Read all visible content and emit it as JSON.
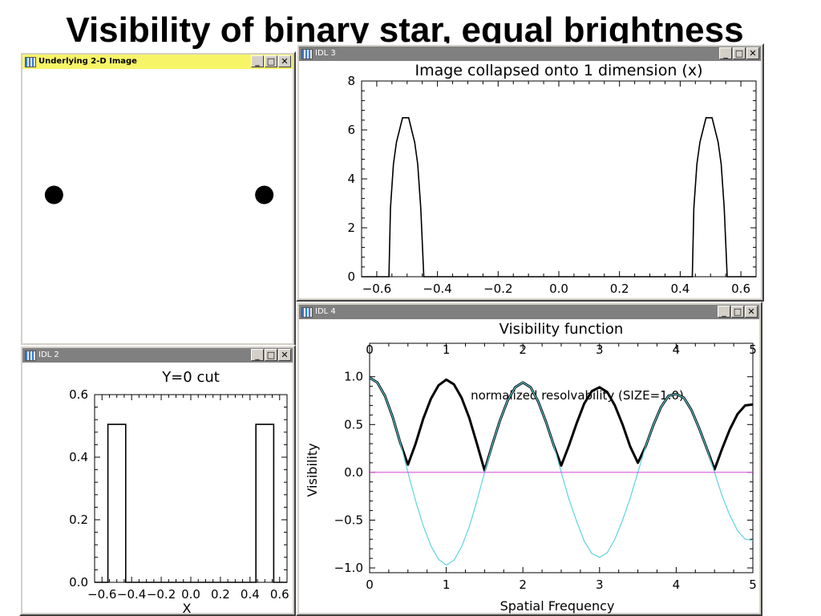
{
  "slide_title": "Visibility of binary star, equal brightness",
  "windows": {
    "image": {
      "title": "Underlying 2-D Image"
    },
    "collapsed": {
      "title": "IDL 3"
    },
    "cut": {
      "title": "IDL 2"
    },
    "visibility": {
      "title": "IDL 4"
    }
  },
  "window_buttons": {
    "minimize": "_",
    "maximize": "□",
    "close": "✕"
  },
  "colors": {
    "data": "#000000",
    "model_curve": "#5fd3de",
    "zero_line": "#d040d0",
    "selected_titlebar": "#f7f468",
    "window_frame": "#d4d0c8"
  },
  "chart_data": [
    {
      "id": "image",
      "type": "scatter",
      "title": "",
      "points": [
        {
          "x": -0.5,
          "y": 0.0
        },
        {
          "x": 0.5,
          "y": 0.0
        }
      ],
      "xlim": [
        -0.65,
        0.65
      ],
      "ylim": [
        -0.65,
        0.65
      ]
    },
    {
      "id": "collapsed",
      "type": "line",
      "title": "Image collapsed onto 1 dimension (x)",
      "xlabel": "",
      "ylabel": "",
      "xlim": [
        -0.65,
        0.65
      ],
      "ylim": [
        0,
        8
      ],
      "xticks": [
        -0.6,
        -0.4,
        -0.2,
        0.0,
        0.2,
        0.4,
        0.6
      ],
      "xtick_labels": [
        "−0.6",
        "−0.4",
        "−0.2",
        "0.0",
        "0.2",
        "0.4",
        "0.6"
      ],
      "yticks": [
        0,
        2,
        4,
        6,
        8
      ],
      "ytick_labels": [
        "0",
        "2",
        "4",
        "6",
        "8"
      ],
      "series": [
        {
          "x": [
            -0.65,
            -0.56,
            -0.555,
            -0.545,
            -0.535,
            -0.525,
            -0.515,
            -0.505,
            -0.495,
            -0.485,
            -0.475,
            -0.465,
            -0.455,
            -0.445,
            -0.44,
            0.44,
            0.445,
            0.455,
            0.465,
            0.475,
            0.485,
            0.495,
            0.505,
            0.515,
            0.525,
            0.535,
            0.545,
            0.555,
            0.56,
            0.65
          ],
          "y": [
            0,
            0,
            2.8,
            4.6,
            5.5,
            6.0,
            6.5,
            6.5,
            6.5,
            6.0,
            5.5,
            4.6,
            2.8,
            0,
            0,
            0,
            2.8,
            4.6,
            5.5,
            6.0,
            6.5,
            6.5,
            6.5,
            6.0,
            5.5,
            4.6,
            2.8,
            0,
            0,
            0
          ]
        }
      ]
    },
    {
      "id": "cut",
      "type": "line",
      "title": "Y=0 cut",
      "xlabel": "X",
      "ylabel": "",
      "xlim": [
        -0.65,
        0.65
      ],
      "ylim": [
        0,
        0.6
      ],
      "xticks": [
        -0.6,
        -0.4,
        -0.2,
        0.0,
        0.2,
        0.4,
        0.6
      ],
      "xtick_labels": [
        "−0.6",
        "−0.4",
        "−0.2",
        "0.0",
        "0.2",
        "0.4",
        "0.6"
      ],
      "yticks": [
        0,
        0.2,
        0.4,
        0.6
      ],
      "ytick_labels": [
        "0.0",
        "0.2",
        "0.4",
        "0.6"
      ],
      "series": [
        {
          "x": [
            -0.65,
            -0.56,
            -0.56,
            -0.44,
            -0.44,
            0.44,
            0.44,
            0.56,
            0.56,
            0.65
          ],
          "y": [
            0,
            0,
            0.505,
            0.505,
            0,
            0,
            0.505,
            0.505,
            0,
            0
          ]
        }
      ]
    },
    {
      "id": "visibility",
      "type": "line",
      "title": "Visibility function",
      "top_axis_label": "normalized resolvability (SIZE=1.0)",
      "xlabel": "Spatial Frequency",
      "ylabel": "Visibility",
      "xlim": [
        0,
        5
      ],
      "ylim": [
        -1.05,
        1.35
      ],
      "xticks": [
        0,
        1,
        2,
        3,
        4,
        5
      ],
      "xtick_labels": [
        "0",
        "1",
        "2",
        "3",
        "4",
        "5"
      ],
      "top_xticks": [
        0,
        1,
        2,
        3,
        4,
        5
      ],
      "top_xtick_labels": [
        "0",
        "1",
        "2",
        "3",
        "4",
        "5"
      ],
      "yticks": [
        -1.0,
        -0.5,
        0.0,
        0.5,
        1.0
      ],
      "ytick_labels": [
        "−1.0",
        "−0.5",
        "0.0",
        "0.5",
        "1.0"
      ],
      "series": [
        {
          "name": "",
          "style": "thick",
          "x": [
            0.0,
            0.1,
            0.2,
            0.3,
            0.4,
            0.5,
            0.6,
            0.7,
            0.8,
            0.9,
            1.0,
            1.1,
            1.2,
            1.3,
            1.4,
            1.5,
            1.6,
            1.7,
            1.8,
            1.9,
            2.0,
            2.1,
            2.2,
            2.3,
            2.4,
            2.5,
            2.6,
            2.7,
            2.8,
            2.9,
            3.0,
            3.1,
            3.2,
            3.3,
            3.4,
            3.5,
            3.6,
            3.7,
            3.8,
            3.9,
            4.0,
            4.1,
            4.2,
            4.3,
            4.4,
            4.5,
            4.6,
            4.7,
            4.8,
            4.9,
            5.0
          ],
          "y": [
            0.99,
            0.94,
            0.8,
            0.58,
            0.31,
            0.08,
            0.3,
            0.56,
            0.77,
            0.91,
            0.97,
            0.92,
            0.78,
            0.57,
            0.3,
            0.02,
            0.29,
            0.54,
            0.75,
            0.89,
            0.94,
            0.89,
            0.74,
            0.53,
            0.29,
            0.07,
            0.28,
            0.51,
            0.72,
            0.85,
            0.89,
            0.84,
            0.7,
            0.5,
            0.27,
            0.1,
            0.27,
            0.49,
            0.68,
            0.8,
            0.82,
            0.78,
            0.65,
            0.46,
            0.25,
            0.03,
            0.25,
            0.45,
            0.61,
            0.7,
            0.71
          ]
        },
        {
          "name": "",
          "style": "thin",
          "x": [
            0.0,
            0.1,
            0.2,
            0.3,
            0.4,
            0.5,
            0.6,
            0.7,
            0.8,
            0.9,
            1.0,
            1.1,
            1.2,
            1.3,
            1.4,
            1.5,
            1.6,
            1.7,
            1.8,
            1.9,
            2.0,
            2.1,
            2.2,
            2.3,
            2.4,
            2.5,
            2.6,
            2.7,
            2.8,
            2.9,
            3.0,
            3.1,
            3.2,
            3.3,
            3.4,
            3.5,
            3.6,
            3.7,
            3.8,
            3.9,
            4.0,
            4.1,
            4.2,
            4.3,
            4.4,
            4.5,
            4.6,
            4.7,
            4.8,
            4.9,
            5.0
          ],
          "y": [
            0.99,
            0.94,
            0.8,
            0.58,
            0.31,
            0.0,
            -0.3,
            -0.56,
            -0.77,
            -0.91,
            -0.97,
            -0.92,
            -0.78,
            -0.57,
            -0.3,
            0.0,
            0.29,
            0.54,
            0.75,
            0.89,
            0.94,
            0.89,
            0.74,
            0.53,
            0.29,
            0.0,
            -0.28,
            -0.51,
            -0.72,
            -0.85,
            -0.89,
            -0.84,
            -0.7,
            -0.5,
            -0.27,
            0.0,
            0.27,
            0.49,
            0.68,
            0.8,
            0.82,
            0.78,
            0.65,
            0.46,
            0.25,
            0.0,
            -0.25,
            -0.45,
            -0.61,
            -0.7,
            -0.71
          ]
        },
        {
          "name": "",
          "style": "zero",
          "x": [
            0,
            5
          ],
          "y": [
            0,
            0
          ]
        }
      ]
    }
  ]
}
